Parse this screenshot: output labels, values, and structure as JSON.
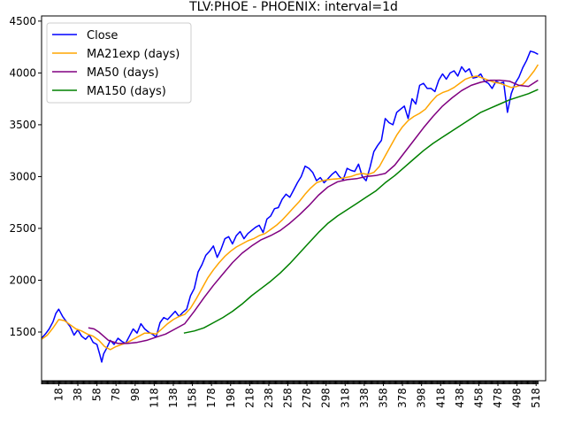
{
  "chart_data": {
    "type": "line",
    "title": "TLV:PHOE - PHOENIX: interval=1d",
    "xlabel": "",
    "ylabel": "",
    "xlim": [
      0,
      528
    ],
    "ylim": [
      1030,
      4550
    ],
    "x_ticks": [
      18,
      38,
      58,
      78,
      98,
      118,
      138,
      158,
      178,
      198,
      218,
      238,
      258,
      278,
      298,
      318,
      338,
      358,
      378,
      398,
      418,
      438,
      458,
      478,
      498,
      518
    ],
    "y_ticks": [
      1500,
      2000,
      2500,
      3000,
      3500,
      4000,
      4500
    ],
    "grid": false,
    "legend_position": "top-left",
    "series": [
      {
        "name": "Close",
        "color": "#0000ff",
        "x": [
          0,
          4,
          8,
          12,
          15,
          18,
          22,
          26,
          30,
          34,
          38,
          42,
          46,
          50,
          54,
          58,
          61,
          63,
          65,
          68,
          72,
          76,
          80,
          84,
          88,
          92,
          96,
          100,
          104,
          108,
          112,
          116,
          120,
          124,
          128,
          132,
          136,
          140,
          144,
          148,
          152,
          156,
          160,
          164,
          168,
          172,
          176,
          180,
          184,
          188,
          192,
          196,
          200,
          204,
          208,
          212,
          216,
          220,
          224,
          228,
          232,
          236,
          240,
          244,
          248,
          252,
          256,
          260,
          264,
          268,
          272,
          276,
          280,
          284,
          288,
          292,
          296,
          300,
          304,
          308,
          312,
          316,
          320,
          324,
          328,
          332,
          336,
          340,
          344,
          348,
          352,
          356,
          360,
          364,
          368,
          372,
          376,
          380,
          384,
          388,
          392,
          396,
          400,
          404,
          408,
          412,
          416,
          420,
          424,
          428,
          432,
          436,
          440,
          444,
          448,
          452,
          456,
          460,
          464,
          468,
          472,
          476,
          480,
          484,
          488,
          492,
          496,
          500,
          504,
          508,
          512,
          516,
          520
        ],
        "y": [
          1440,
          1480,
          1530,
          1600,
          1680,
          1720,
          1650,
          1600,
          1550,
          1470,
          1520,
          1460,
          1430,
          1470,
          1400,
          1380,
          1280,
          1210,
          1290,
          1340,
          1420,
          1380,
          1440,
          1410,
          1390,
          1460,
          1530,
          1490,
          1580,
          1530,
          1500,
          1480,
          1450,
          1590,
          1640,
          1620,
          1660,
          1700,
          1650,
          1690,
          1720,
          1850,
          1920,
          2080,
          2150,
          2240,
          2280,
          2330,
          2220,
          2300,
          2400,
          2420,
          2350,
          2430,
          2470,
          2400,
          2450,
          2480,
          2510,
          2530,
          2460,
          2590,
          2620,
          2690,
          2700,
          2780,
          2830,
          2800,
          2870,
          2940,
          3000,
          3100,
          3080,
          3040,
          2960,
          2990,
          2940,
          2980,
          3020,
          3050,
          3000,
          2970,
          3080,
          3060,
          3050,
          3120,
          3000,
          2960,
          3090,
          3240,
          3300,
          3350,
          3560,
          3520,
          3500,
          3620,
          3650,
          3680,
          3560,
          3750,
          3700,
          3880,
          3900,
          3850,
          3850,
          3820,
          3930,
          3990,
          3940,
          4000,
          4020,
          3970,
          4060,
          4010,
          4040,
          3950,
          3960,
          3990,
          3920,
          3900,
          3850,
          3920,
          3900,
          3910,
          3620,
          3800,
          3900,
          3960,
          4050,
          4120,
          4210,
          4200,
          4180
        ]
      },
      {
        "name": "MA21exp (days)",
        "color": "#ffa500",
        "x": [
          0,
          6,
          12,
          18,
          24,
          30,
          36,
          42,
          48,
          54,
          60,
          66,
          72,
          78,
          84,
          90,
          96,
          102,
          108,
          114,
          120,
          126,
          132,
          138,
          144,
          150,
          156,
          162,
          168,
          174,
          180,
          186,
          192,
          198,
          204,
          210,
          216,
          222,
          228,
          234,
          240,
          246,
          252,
          258,
          264,
          270,
          276,
          282,
          288,
          294,
          300,
          306,
          312,
          318,
          324,
          330,
          336,
          342,
          348,
          354,
          360,
          366,
          372,
          378,
          384,
          390,
          396,
          402,
          408,
          414,
          420,
          426,
          432,
          438,
          444,
          450,
          456,
          462,
          468,
          474,
          480,
          486,
          492,
          498,
          504,
          510,
          516,
          520
        ],
        "y": [
          1430,
          1470,
          1540,
          1620,
          1610,
          1570,
          1530,
          1510,
          1480,
          1460,
          1420,
          1360,
          1330,
          1360,
          1380,
          1400,
          1430,
          1460,
          1490,
          1490,
          1480,
          1530,
          1580,
          1620,
          1650,
          1670,
          1730,
          1820,
          1920,
          2020,
          2100,
          2170,
          2230,
          2280,
          2320,
          2350,
          2380,
          2400,
          2430,
          2450,
          2490,
          2530,
          2580,
          2640,
          2700,
          2760,
          2830,
          2890,
          2940,
          2960,
          2970,
          2975,
          2980,
          2990,
          3000,
          3020,
          3030,
          3020,
          3040,
          3100,
          3200,
          3300,
          3400,
          3480,
          3540,
          3580,
          3610,
          3650,
          3720,
          3780,
          3810,
          3830,
          3860,
          3900,
          3940,
          3960,
          3970,
          3950,
          3930,
          3910,
          3900,
          3880,
          3860,
          3870,
          3890,
          3950,
          4020,
          4080
        ]
      },
      {
        "name": "MA50 (days)",
        "color": "#800080",
        "x": [
          49,
          55,
          60,
          65,
          70,
          80,
          90,
          100,
          110,
          120,
          130,
          140,
          150,
          160,
          170,
          180,
          190,
          200,
          210,
          220,
          230,
          240,
          250,
          260,
          270,
          280,
          290,
          300,
          310,
          320,
          330,
          340,
          350,
          360,
          370,
          380,
          390,
          400,
          410,
          420,
          430,
          440,
          450,
          460,
          470,
          480,
          490,
          500,
          510,
          520
        ],
        "y": [
          1540,
          1530,
          1500,
          1460,
          1420,
          1390,
          1390,
          1400,
          1420,
          1450,
          1480,
          1530,
          1580,
          1700,
          1830,
          1950,
          2060,
          2170,
          2260,
          2330,
          2390,
          2430,
          2480,
          2550,
          2630,
          2720,
          2820,
          2900,
          2950,
          2970,
          2980,
          3000,
          3010,
          3030,
          3110,
          3230,
          3350,
          3470,
          3580,
          3680,
          3760,
          3830,
          3880,
          3910,
          3930,
          3930,
          3920,
          3880,
          3870,
          3930
        ]
      },
      {
        "name": "MA150 (days)",
        "color": "#008000",
        "x": [
          149,
          160,
          170,
          180,
          190,
          200,
          210,
          220,
          230,
          240,
          250,
          260,
          270,
          280,
          290,
          300,
          310,
          320,
          330,
          340,
          350,
          360,
          370,
          380,
          390,
          400,
          410,
          420,
          430,
          440,
          450,
          460,
          470,
          480,
          490,
          500,
          510,
          520
        ],
        "y": [
          1490,
          1510,
          1540,
          1590,
          1640,
          1700,
          1770,
          1850,
          1920,
          1990,
          2070,
          2160,
          2260,
          2360,
          2460,
          2550,
          2620,
          2680,
          2740,
          2800,
          2860,
          2940,
          3010,
          3090,
          3170,
          3250,
          3320,
          3380,
          3440,
          3500,
          3560,
          3620,
          3660,
          3700,
          3740,
          3770,
          3800,
          3840
        ]
      }
    ]
  }
}
